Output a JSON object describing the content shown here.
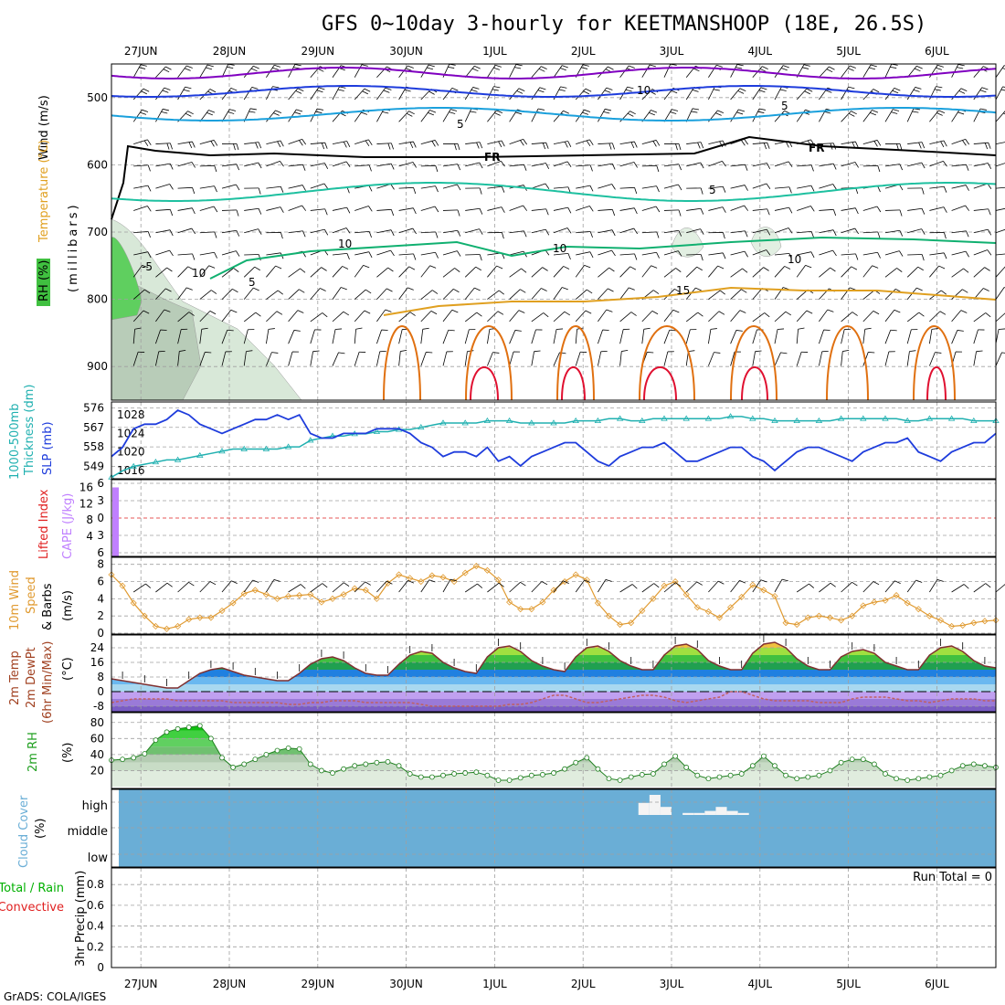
{
  "title": "GFS 0~10day 3-hourly for KEETMANSHOOP (18E, 26.5S)",
  "footer": "GrADS: COLA/IGES",
  "dates": [
    "27JUN",
    "28JUN",
    "29JUN",
    "30JUN",
    "1JUL",
    "2JUL",
    "3JUL",
    "4JUL",
    "5JUL",
    "6JUL"
  ],
  "colors": {
    "frame": "#000000",
    "grid": "#a0a0a0",
    "temp_cold": "#8000c0",
    "temp_blue": "#1e3cdc",
    "temp_cyan": "#1aa0dc",
    "temp_teal": "#1ec0a0",
    "temp_green": "#10b070",
    "temp_orange": "#e0a020",
    "temp_dorange": "#e07010",
    "temp_red": "#e01030",
    "thickness": "#20b0b0",
    "slp": "#1e3cdc",
    "cape": "#c080ff",
    "wind10": "#e09a30",
    "rh2m_line": "#208020",
    "cloud": "#6aaed6",
    "precip_total": "#00b000",
    "precip_conv": "#e02020",
    "lifted": "#e02020"
  },
  "labels": {
    "p1": [
      "Wind (m/s)",
      "Temperature (°C)",
      "RH (%)",
      "(millibars)"
    ],
    "p2": [
      "1000-500mb",
      "Thickness (dm)",
      "SLP (mb)"
    ],
    "p3": [
      "Lifted Index",
      "CAPE (J/kg)"
    ],
    "p4": [
      "10m Wind",
      "Speed",
      "& Barbs",
      "(m/s)"
    ],
    "p5": [
      "2m Temp",
      "2m DewPt",
      "(6hr Min/Max)",
      "(°C)"
    ],
    "p6": [
      "2m RH",
      "(%)"
    ],
    "p7": [
      "Cloud Cover",
      "(%)"
    ],
    "p8": [
      "Total / Rain",
      "Convective",
      "3hr Precip (mm)"
    ],
    "contour_labels": [
      "10",
      "5",
      "5",
      "-5",
      "FR",
      "FR",
      "5",
      "10",
      "15",
      "5",
      "10",
      "10",
      "10"
    ],
    "cloud_levels": [
      "high",
      "middle",
      "low"
    ],
    "run_total": "Run Total = 0"
  },
  "chart_data": {
    "type": "meteogram",
    "x_steps": 81,
    "x_step_hours": 3,
    "upper_air": {
      "pressure_axis_ticks": [
        500,
        600,
        700,
        800,
        900
      ],
      "pressure_range": [
        450,
        950
      ]
    },
    "thickness_slp": {
      "thickness_ticks": [
        549,
        558,
        567,
        576
      ],
      "slp_ticks": [
        1016,
        1020,
        1024,
        1028
      ],
      "thickness_dm": [
        544,
        547,
        549,
        550,
        551,
        552,
        552,
        553,
        554,
        555,
        556,
        557,
        557,
        557,
        557,
        557,
        558,
        558,
        561,
        562,
        563,
        563,
        564,
        564,
        565,
        565,
        566,
        566,
        567,
        568,
        569,
        569,
        569,
        569,
        570,
        570,
        570,
        569,
        569,
        569,
        569,
        569,
        570,
        570,
        570,
        571,
        571,
        570,
        570,
        571,
        571,
        571,
        571,
        571,
        571,
        571,
        572,
        572,
        571,
        571,
        570,
        570,
        570,
        570,
        570,
        570,
        571,
        571,
        571,
        571,
        571,
        571,
        570,
        570,
        571,
        571,
        571,
        571,
        570,
        570,
        570
      ],
      "slp_mb": [
        1019,
        1021,
        1025,
        1026,
        1026,
        1027,
        1029,
        1028,
        1026,
        1025,
        1024,
        1025,
        1026,
        1027,
        1027,
        1028,
        1027,
        1028,
        1024,
        1023,
        1023,
        1024,
        1024,
        1024,
        1025,
        1025,
        1025,
        1024,
        1022,
        1021,
        1019,
        1020,
        1020,
        1019,
        1021,
        1018,
        1019,
        1017,
        1019,
        1020,
        1021,
        1022,
        1022,
        1020,
        1018,
        1017,
        1019,
        1020,
        1021,
        1021,
        1022,
        1020,
        1018,
        1018,
        1019,
        1020,
        1021,
        1021,
        1019,
        1018,
        1016,
        1018,
        1020,
        1021,
        1021,
        1020,
        1019,
        1018,
        1020,
        1021,
        1022,
        1022,
        1023,
        1020,
        1019,
        1018,
        1020,
        1021,
        1022,
        1022,
        1024
      ]
    },
    "cape_li": {
      "li_ticks": [
        -6,
        -3,
        0,
        3,
        6
      ],
      "cape_ticks": [
        16,
        12,
        8,
        4
      ],
      "cape_jkg_first_step": 16,
      "lifted_index_zero_line": 0
    },
    "wind10m": {
      "y_ticks": [
        0,
        2,
        4,
        6,
        8
      ],
      "speed_ms": [
        6.8,
        5.5,
        3.5,
        2.0,
        0.8,
        0.5,
        0.8,
        1.6,
        1.8,
        1.8,
        2.6,
        3.5,
        4.6,
        5.0,
        4.5,
        4.0,
        4.3,
        4.4,
        4.5,
        3.6,
        4.0,
        4.5,
        5.2,
        5.0,
        4.0,
        5.8,
        6.8,
        6.4,
        6.0,
        6.7,
        6.5,
        6.0,
        7.0,
        7.8,
        7.3,
        6.2,
        3.6,
        2.8,
        2.8,
        3.6,
        5.0,
        6.0,
        6.8,
        6.2,
        3.5,
        2.0,
        1.0,
        1.2,
        2.6,
        4.0,
        5.5,
        6.0,
        4.5,
        3.0,
        2.5,
        1.8,
        3.0,
        4.2,
        5.6,
        5.0,
        4.3,
        1.2,
        1.0,
        1.8,
        2.0,
        1.8,
        1.5,
        2.0,
        3.2,
        3.6,
        3.8,
        4.4,
        3.5,
        2.8,
        2.0,
        1.5,
        0.8,
        0.9,
        1.2,
        1.4,
        1.5
      ]
    },
    "temp2m": {
      "y_ticks": [
        24,
        16,
        8,
        0,
        -8
      ],
      "y_ticks_low": [
        -8
      ],
      "temp_c": [
        7,
        6,
        5,
        4,
        3,
        2,
        2,
        6,
        10,
        12,
        13,
        11,
        9,
        8,
        7,
        6,
        6,
        10,
        15,
        18,
        19,
        17,
        13,
        10,
        9,
        9,
        15,
        20,
        22,
        21,
        16,
        13,
        11,
        10,
        19,
        24,
        25,
        22,
        17,
        14,
        12,
        11,
        19,
        24,
        25,
        22,
        17,
        14,
        12,
        12,
        20,
        25,
        26,
        23,
        17,
        14,
        12,
        12,
        21,
        26,
        27,
        24,
        18,
        14,
        12,
        12,
        19,
        22,
        23,
        21,
        16,
        14,
        12,
        12,
        20,
        24,
        25,
        22,
        17,
        14,
        13
      ],
      "dewpt_c": [
        -6,
        -5,
        -4,
        -4,
        -4,
        -4,
        -5,
        -5,
        -5,
        -5,
        -5,
        -6,
        -6,
        -6,
        -6,
        -6,
        -7,
        -7,
        -6,
        -6,
        -5,
        -5,
        -5,
        -6,
        -6,
        -6,
        -6,
        -6,
        -7,
        -8,
        -8,
        -8,
        -8,
        -8,
        -8,
        -8,
        -7,
        -7,
        -6,
        -4,
        -2,
        -2,
        -4,
        -6,
        -6,
        -5,
        -4,
        -3,
        -2,
        -2,
        -3,
        -5,
        -6,
        -5,
        -4,
        -3,
        0,
        0,
        -2,
        -4,
        -5,
        -5,
        -5,
        -5,
        -6,
        -6,
        -6,
        -4,
        -3,
        -3,
        -3,
        -4,
        -5,
        -5,
        -6,
        -5,
        -4,
        -4,
        -4,
        -5,
        -5
      ]
    },
    "rh2m": {
      "y_ticks": [
        20,
        40,
        60,
        80
      ],
      "rh_pct": [
        33,
        34,
        36,
        41,
        58,
        68,
        72,
        74,
        76,
        60,
        36,
        24,
        28,
        34,
        40,
        45,
        48,
        47,
        28,
        20,
        17,
        22,
        26,
        28,
        30,
        31,
        26,
        16,
        12,
        12,
        14,
        16,
        17,
        18,
        14,
        8,
        8,
        11,
        14,
        15,
        17,
        22,
        30,
        36,
        22,
        10,
        8,
        12,
        15,
        16,
        28,
        38,
        24,
        14,
        10,
        12,
        14,
        16,
        26,
        38,
        26,
        14,
        10,
        12,
        14,
        20,
        30,
        34,
        34,
        28,
        16,
        10,
        8,
        10,
        12,
        14,
        20,
        26,
        28,
        26,
        24
      ]
    },
    "cloud": {
      "high_pct_steps": {
        "48": 60,
        "49": 100,
        "50": 40,
        "52": 10,
        "53": 10,
        "54": 20,
        "55": 40,
        "56": 20,
        "57": 10
      },
      "middle_pct": 0,
      "low_pct": 0
    },
    "precip": {
      "y_ticks": [
        0,
        0.2,
        0.4,
        0.6,
        0.8
      ],
      "run_total_mm": 0
    }
  }
}
